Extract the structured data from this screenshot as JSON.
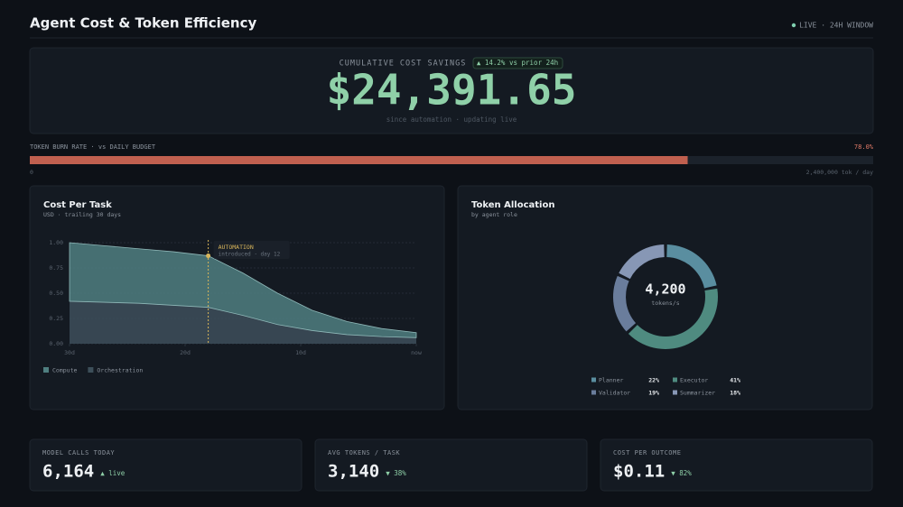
{
  "header": {
    "title": "Agent Cost & Token Efficiency",
    "status": "LIVE · 24H WINDOW"
  },
  "savings": {
    "label": "CUMULATIVE COST SAVINGS",
    "badge": "▲ 14.2% vs prior 24h",
    "value": "$24,391.65",
    "note": "since automation · updating live"
  },
  "burn": {
    "label": "TOKEN BURN RATE · vs DAILY BUDGET",
    "value": 78.0,
    "value_label": "78.0%",
    "start_label": "0",
    "end_label": "2,400,000 tok / day",
    "color": "#c0604f"
  },
  "chart_data": [
    {
      "type": "area",
      "stacked": true,
      "title": "Cost Per Task",
      "subtitle": "USD · trailing 30 days",
      "x": [
        -30,
        -27,
        -24,
        -21,
        -18,
        -15,
        -12,
        -9,
        -6,
        -3,
        0
      ],
      "series": [
        {
          "name": "Compute",
          "color": "#4f7f80",
          "values": [
            0.58,
            0.56,
            0.54,
            0.53,
            0.51,
            0.42,
            0.31,
            0.2,
            0.13,
            0.08,
            0.05
          ]
        },
        {
          "name": "Orchestration",
          "color": "#3d4f5a",
          "values": [
            0.42,
            0.41,
            0.4,
            0.38,
            0.36,
            0.28,
            0.19,
            0.13,
            0.09,
            0.07,
            0.06
          ]
        }
      ],
      "xlim": [
        -30,
        0
      ],
      "xticks": [
        {
          "value": -30,
          "label": "30d"
        },
        {
          "value": -20,
          "label": "20d"
        },
        {
          "value": -10,
          "label": "10d"
        },
        {
          "value": 0,
          "label": "now"
        }
      ],
      "ylim": [
        0,
        1
      ],
      "yticks": [
        {
          "value": 0,
          "label": "0.00"
        },
        {
          "value": 0.25,
          "label": "0.25"
        },
        {
          "value": 0.5,
          "label": "0.50"
        },
        {
          "value": 0.75,
          "label": "0.75"
        },
        {
          "value": 1,
          "label": "1.00"
        }
      ],
      "grid": true,
      "annotation": {
        "x": -18,
        "label": "AUTOMATION",
        "sublabel": "introduced · day 12"
      }
    },
    {
      "type": "donut",
      "title": "Token Allocation",
      "subtitle": "by agent role",
      "center_value": "4,200",
      "center_label": "tokens/s",
      "categories": [
        "Planner",
        "Executor",
        "Validator",
        "Summarizer"
      ],
      "values": [
        22,
        41,
        19,
        18
      ],
      "value_labels": [
        "22%",
        "41%",
        "19%",
        "18%"
      ],
      "colors": [
        "#5a8ea0",
        "#4f8b80",
        "#6a7d9c",
        "#8797b5"
      ]
    }
  ],
  "kpis": [
    {
      "label": "MODEL CALLS TODAY",
      "value": "6,164",
      "delta": "▲ live"
    },
    {
      "label": "AVG TOKENS / TASK",
      "value": "3,140",
      "delta": "▼ 38%"
    },
    {
      "label": "COST PER OUTCOME",
      "value": "$0.11",
      "delta": "▼ 82%"
    }
  ]
}
